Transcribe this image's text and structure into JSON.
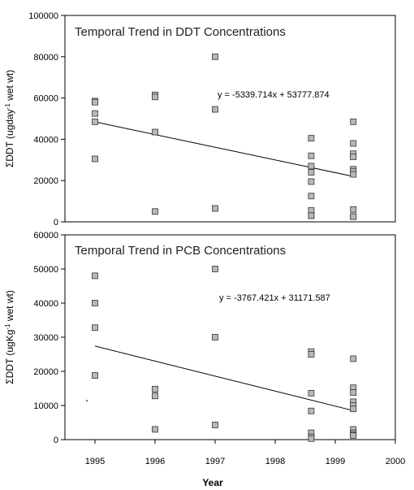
{
  "x_axis": {
    "label": "Year",
    "ticks": [
      "1995",
      "1996",
      "1997",
      "1998",
      "1999",
      "2000"
    ]
  },
  "chart_data": [
    {
      "type": "scatter",
      "title": "Temporal Trend in DDT Concentrations",
      "ylabel_main": "ΣDDT (ugday",
      "ylabel_sup": "-1",
      "ylabel_tail": " wet wt)",
      "xlim": [
        1994.5,
        2000
      ],
      "ylim": [
        0,
        100000
      ],
      "yticks": [
        "0",
        "20000",
        "40000",
        "60000",
        "80000",
        "100000"
      ],
      "equation": "y =  -5339.714x + 53777.874",
      "x": [
        1995,
        1995,
        1995,
        1995,
        1995,
        1996,
        1996,
        1996,
        1996,
        1997,
        1997,
        1997,
        1998.6,
        1998.6,
        1998.6,
        1998.6,
        1998.6,
        1998.6,
        1998.6,
        1998.6,
        1998.6,
        1999.3,
        1999.3,
        1999.3,
        1999.3,
        1999.3,
        1999.3,
        1999.3,
        1999.3,
        1999.3,
        1999.3
      ],
      "y": [
        58500,
        58000,
        52500,
        48500,
        30500,
        61500,
        60500,
        43500,
        5000,
        80000,
        54500,
        6500,
        40500,
        32000,
        27000,
        24000,
        19500,
        12500,
        5500,
        3000,
        3000,
        48500,
        38000,
        33000,
        31500,
        25500,
        24500,
        23000,
        6000,
        2500,
        2500
      ],
      "trend": {
        "x": [
          1995,
          1999.3
        ],
        "y": [
          48438,
          22000
        ]
      }
    },
    {
      "type": "scatter",
      "title": "Temporal Trend in PCB Concentrations",
      "ylabel_main": "ΣDDT (ugKg",
      "ylabel_sup": "-1",
      "ylabel_tail": " wet wt)",
      "xlim": [
        1994.5,
        2000
      ],
      "ylim": [
        0,
        60000
      ],
      "yticks": [
        "0",
        "10000",
        "20000",
        "30000",
        "40000",
        "50000",
        "60000"
      ],
      "equation": "y =  -3767.421x + 31171.587",
      "x": [
        1995,
        1995,
        1995,
        1995,
        1996,
        1996,
        1996,
        1997,
        1997,
        1997,
        1998.6,
        1998.6,
        1998.6,
        1998.6,
        1998.6,
        1998.6,
        1998.6,
        1999.3,
        1999.3,
        1999.3,
        1999.3,
        1999.3,
        1999.3,
        1999.3,
        1999.3,
        1999.3,
        1999.3
      ],
      "y": [
        48000,
        40000,
        32800,
        18800,
        14800,
        12800,
        3000,
        50000,
        30000,
        4300,
        25800,
        25000,
        13600,
        8400,
        2000,
        800,
        300,
        23700,
        15200,
        13800,
        11100,
        10000,
        9000,
        3000,
        2000,
        1500,
        1200
      ],
      "trend": {
        "x": [
          1995,
          1999.3
        ],
        "y": [
          27404,
          8500
        ]
      }
    }
  ]
}
